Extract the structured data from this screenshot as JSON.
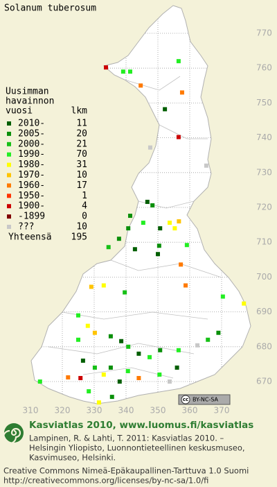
{
  "header": {
    "title": "Solanum tuberosum"
  },
  "legend": {
    "heading": [
      "Uusimman",
      "havainnon"
    ],
    "col_period": "vuosi",
    "col_count": "lkm",
    "items": [
      {
        "label": "2010-",
        "count": 11,
        "color": "#005e00"
      },
      {
        "label": "2005-",
        "count": 20,
        "color": "#0a8f0a"
      },
      {
        "label": "2000-",
        "count": 21,
        "color": "#16c016"
      },
      {
        "label": "1990-",
        "count": 70,
        "color": "#22ee22"
      },
      {
        "label": "1980-",
        "count": 31,
        "color": "#ffff00"
      },
      {
        "label": "1970-",
        "count": 10,
        "color": "#ffc400"
      },
      {
        "label": "1960-",
        "count": 17,
        "color": "#ff7a00"
      },
      {
        "label": "1950-",
        "count": 1,
        "color": "#ff3300"
      },
      {
        "label": "1900-",
        "count": 4,
        "color": "#cc0000"
      },
      {
        "label": "-1899",
        "count": 0,
        "color": "#800000"
      },
      {
        "label": "???",
        "count": 10,
        "color": "#c8c8c8"
      }
    ],
    "total_label": "Yhteensä",
    "total": 195
  },
  "map": {
    "xticks": [
      310,
      320,
      330,
      340,
      350,
      360,
      370
    ],
    "yticks": [
      670,
      680,
      690,
      700,
      710,
      720,
      730,
      740,
      750,
      760,
      770
    ]
  },
  "points": [
    [
      333.7,
      760.2,
      8
    ],
    [
      339.1,
      759,
      3
    ],
    [
      341.3,
      759,
      3
    ],
    [
      356.5,
      762,
      3
    ],
    [
      357.6,
      753,
      6
    ],
    [
      344.6,
      755,
      6
    ],
    [
      352.2,
      748.2,
      0
    ],
    [
      356.5,
      740.2,
      8
    ],
    [
      347.6,
      737.2,
      10
    ],
    [
      365.2,
      732,
      10
    ],
    [
      346.7,
      721.6,
      0
    ],
    [
      348.3,
      720.6,
      1
    ],
    [
      341.3,
      717.6,
      1
    ],
    [
      345.4,
      715.6,
      3
    ],
    [
      353.7,
      715.6,
      4
    ],
    [
      355.3,
      714,
      4
    ],
    [
      356.6,
      716,
      5
    ],
    [
      340.7,
      714,
      1
    ],
    [
      350.7,
      714,
      0
    ],
    [
      337.8,
      711,
      1
    ],
    [
      334.5,
      708.6,
      2
    ],
    [
      342.8,
      708,
      0
    ],
    [
      350.4,
      709,
      1
    ],
    [
      359.1,
      709.2,
      3
    ],
    [
      350,
      706.6,
      0
    ],
    [
      357.2,
      703.6,
      6
    ],
    [
      358.7,
      697.6,
      6
    ],
    [
      329.1,
      697.2,
      5
    ],
    [
      333,
      697.6,
      4
    ],
    [
      339.6,
      695.6,
      2
    ],
    [
      370.4,
      694.4,
      3
    ],
    [
      377,
      692.4,
      4
    ],
    [
      325,
      689,
      3
    ],
    [
      328,
      686,
      4
    ],
    [
      330.2,
      684,
      5
    ],
    [
      335.2,
      683,
      1
    ],
    [
      338.5,
      681.6,
      0
    ],
    [
      340.7,
      680,
      2
    ],
    [
      344,
      678,
      0
    ],
    [
      347.4,
      677,
      3
    ],
    [
      350.7,
      679,
      1
    ],
    [
      356.5,
      679,
      3
    ],
    [
      362.4,
      680.4,
      10
    ],
    [
      365.7,
      682,
      2
    ],
    [
      369,
      684,
      1
    ],
    [
      325,
      682,
      3
    ],
    [
      326.5,
      676,
      0
    ],
    [
      330.2,
      674,
      2
    ],
    [
      333,
      672,
      4
    ],
    [
      335.2,
      674,
      1
    ],
    [
      340.6,
      673,
      3
    ],
    [
      344,
      671,
      6
    ],
    [
      350.5,
      672,
      3
    ],
    [
      353.7,
      670,
      10
    ],
    [
      356,
      674,
      0
    ],
    [
      325.7,
      671,
      8
    ],
    [
      321.8,
      671.2,
      6
    ],
    [
      313,
      670,
      3
    ],
    [
      328.3,
      667.2,
      3
    ],
    [
      331.5,
      664,
      4
    ],
    [
      335.6,
      665.6,
      1
    ],
    [
      338,
      670,
      0
    ]
  ],
  "cc_badge": {
    "cc": "cc",
    "license": "BY-NC-SA"
  },
  "footer": {
    "heading": "Kasviatlas 2010, www.luomus.fi/kasviatlas",
    "citation": [
      "Lampinen, R. & Lahti, T. 2011: Kasviatlas 2010. –",
      "Helsingin Yliopisto, Luonnontieteellinen keskusmuseo,",
      "Kasvimuseo, Helsinki."
    ],
    "license": [
      "Creative Commons Nimeä-Epäkaupallinen-Tarttuva 1.0 Suomi",
      "http://creativecommons.org/licenses/by-nc-sa/1.0/fi"
    ]
  }
}
